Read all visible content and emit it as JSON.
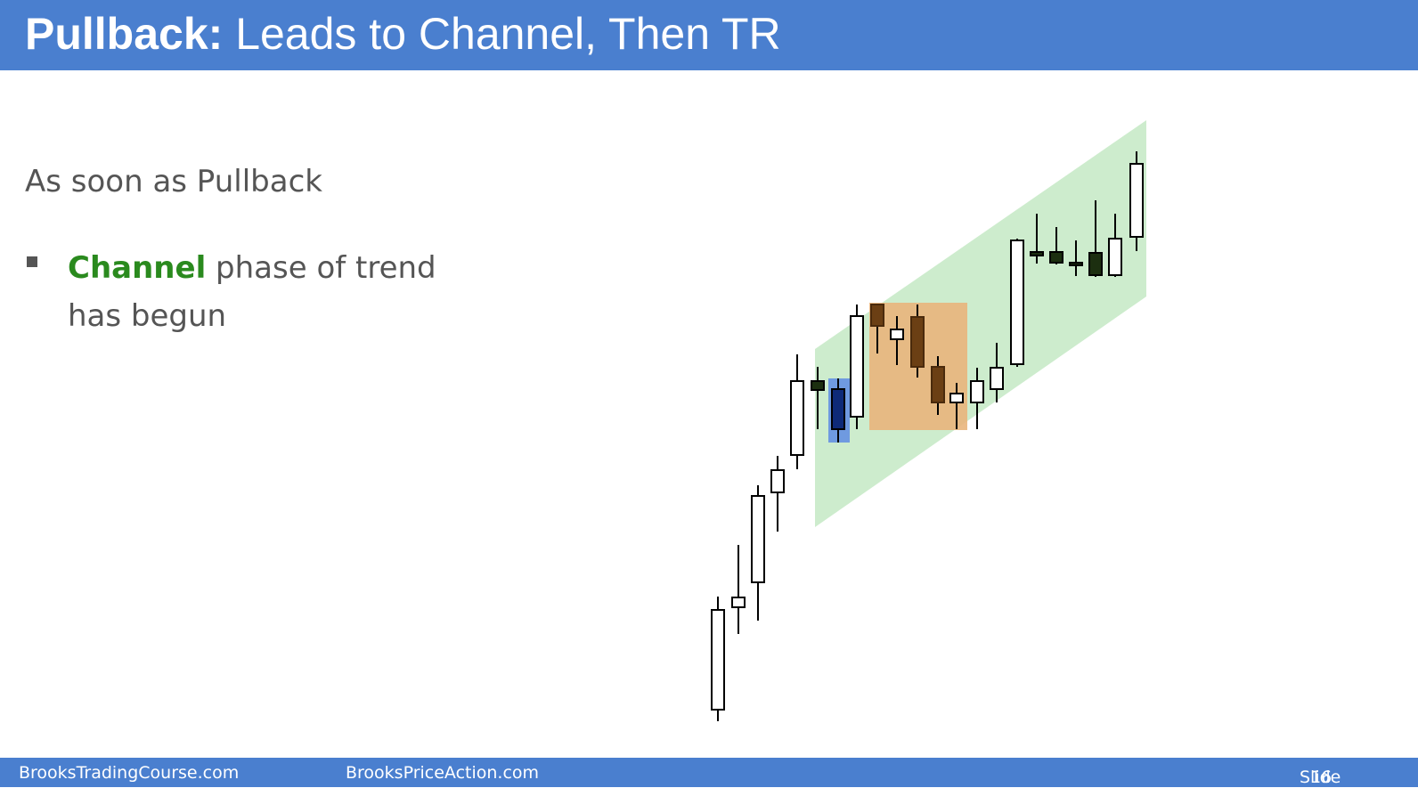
{
  "header": {
    "title_bold": "Pullback:",
    "title_rest": " Leads to Channel, Then TR"
  },
  "body": {
    "intro": "As soon as Pullback",
    "bullet": {
      "highlight": "Channel",
      "rest": " phase of trend has begun"
    }
  },
  "chart": {
    "colors": {
      "channel": "#cdeccd",
      "pullback_box": "#e9b57c",
      "blue_bar": "#6f9ae0",
      "bear_dark": "#1c2f10",
      "bear_bar": "#6b3f14",
      "bull_body": "#ffffff"
    }
  },
  "footer": {
    "site1": "BrooksTradingCourse.com",
    "site2": "BrooksPriceAction.com",
    "slide_label": "Slide",
    "slide_number": "16"
  }
}
